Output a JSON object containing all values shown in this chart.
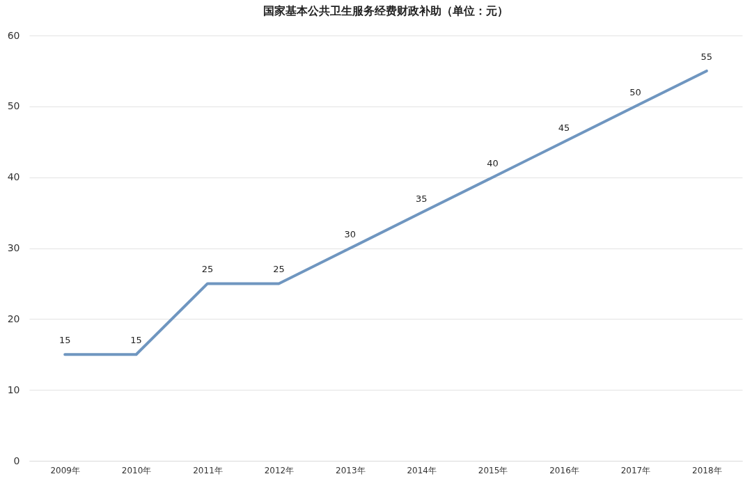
{
  "chart_data": {
    "type": "line",
    "title": "国家基本公共卫生服务经费财政补助（单位：元）",
    "categories": [
      "2009年",
      "2010年",
      "2011年",
      "2012年",
      "2013年",
      "2014年",
      "2015年",
      "2016年",
      "2017年",
      "2018年"
    ],
    "series": [
      {
        "color": "#6f96c0",
        "values": [
          15,
          15,
          25,
          25,
          30,
          35,
          40,
          45,
          50,
          55
        ]
      }
    ],
    "ylim": [
      0,
      60
    ],
    "yticks": [
      0,
      10,
      20,
      30,
      40,
      50,
      60
    ],
    "grid": "y",
    "data_labels": true,
    "legend": false,
    "marker": "none",
    "line_style": "solid"
  }
}
